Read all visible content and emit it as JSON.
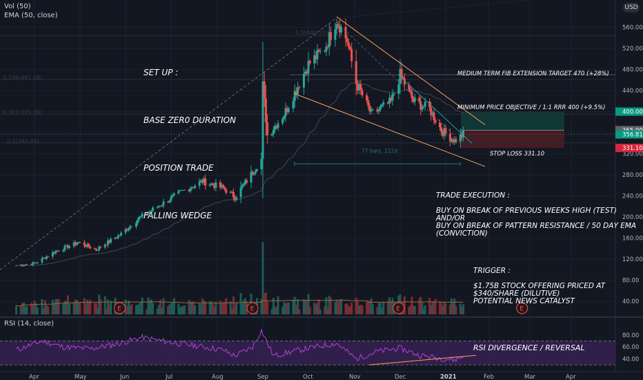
{
  "header": {
    "vol_label": "Vol (50)",
    "ema_label": "EMA (50, close)",
    "currency": "USD",
    "rsi_label": "RSI (14, close)"
  },
  "colors": {
    "background": "#131722",
    "up": "#26a69a",
    "down": "#ef5350",
    "vol_up": "#1e5b57",
    "vol_down": "#7a2c33",
    "ema": "#363a45",
    "vol_ma": "#a0663a",
    "wedge": "#f7a35c",
    "rsi_line": "#b142d9",
    "rsi_band": "#3b2358",
    "target_zone": "#0f3b39",
    "stop_zone": "#4a1d24",
    "trend_dashed": "#787b86",
    "cyan_line": "#17a6a3",
    "measure": "#1f7a6e"
  },
  "annotations": {
    "setup_lines": [
      "SET UP :",
      "BASE ZER0 DURATION",
      "POSITION TRADE",
      "FALLING WEDGE"
    ],
    "medium_target": "MEDIUM TERM FIB EXTENSION TARGET 470 (+28%)",
    "min_objective": "MINIMUM PRICE OBJECTIVE / 1:1 RRR 400 (+9.5%)",
    "stop_loss": "STOP LOSS 331.10",
    "execution": "TRADE EXECUTION :\n\nBUY ON BREAK OF PREVIOUS WEEKS HIGH (TEST)\nAND/OR\nBUY ON BREAK OF PATTERN RESISTANCE / 50 DAY EMA\n(CONVICTION)",
    "trigger": "TRIGGER :\n\n$1.75B STOCK OFFERING PRICED AT\n$340/SHARE (DILUTIVE)\nPOTENTIAL NEWS CATALYST",
    "rsi_note": "RSI DIVERGENCE / REVERSAL",
    "measure": "77 bars, 112d",
    "fib_labels": [
      "0.5(440.33)",
      "0.236(461.09)",
      "0.382(395.26)",
      "0.5(340.83)"
    ],
    "earnings_marker": "E"
  },
  "chart_data": [
    {
      "type": "candlestick",
      "title": "",
      "x_ticks": [
        "Apr",
        "May",
        "Jun",
        "Jul",
        "Aug",
        "Sep",
        "Oct",
        "Nov",
        "Dec",
        "2021",
        "Feb",
        "Mar",
        "Apr"
      ],
      "y_ticks": [
        40,
        80,
        120,
        160,
        200,
        240,
        280,
        320,
        360,
        400,
        440,
        480,
        520,
        560
      ],
      "ylim": [
        14,
        583
      ],
      "price_labels": [
        {
          "value": 400,
          "text": "400.00"
        },
        {
          "value": 365,
          "text": "365.00"
        },
        {
          "value": 356.81,
          "text": "356.81"
        },
        {
          "value": 331.1,
          "text": "331.10"
        }
      ],
      "key_levels": {
        "entry": 356.81,
        "stop": 331.1,
        "target_1": 400,
        "target_2": 470,
        "offering_price": 340
      },
      "path_points": [
        {
          "date": "Mar 20",
          "close": 108
        },
        {
          "date": "Apr 01",
          "close": 112
        },
        {
          "date": "Apr 15",
          "close": 135
        },
        {
          "date": "Apr 30",
          "close": 152
        },
        {
          "date": "May 12",
          "close": 138
        },
        {
          "date": "May 29",
          "close": 168
        },
        {
          "date": "Jun 10",
          "close": 198
        },
        {
          "date": "Jun 25",
          "close": 225
        },
        {
          "date": "Jul 08",
          "close": 248
        },
        {
          "date": "Jul 22",
          "close": 268
        },
        {
          "date": "Aug 05",
          "close": 255
        },
        {
          "date": "Aug 13",
          "close": 238
        },
        {
          "date": "Aug 20",
          "close": 265
        },
        {
          "date": "Aug 31",
          "close": 310
        },
        {
          "date": "Sep 01",
          "close": 450
        },
        {
          "date": "Sep 04",
          "close": 355
        },
        {
          "date": "Sep 15",
          "close": 395
        },
        {
          "date": "Oct 01",
          "close": 490
        },
        {
          "date": "Oct 12",
          "close": 520
        },
        {
          "date": "Oct 20",
          "close": 575
        },
        {
          "date": "Oct 27",
          "close": 535
        },
        {
          "date": "Nov 02",
          "close": 455
        },
        {
          "date": "Nov 12",
          "close": 395
        },
        {
          "date": "Nov 25",
          "close": 418
        },
        {
          "date": "Dec 01",
          "close": 470
        },
        {
          "date": "Dec 10",
          "close": 420
        },
        {
          "date": "Dec 21",
          "close": 405
        },
        {
          "date": "Dec 29",
          "close": 365
        },
        {
          "date": "Jan 07",
          "close": 345
        },
        {
          "date": "Jan 13",
          "close": 356.81
        }
      ],
      "earnings_dates": [
        "May 28",
        "Aug 25",
        "Nov 30",
        "Feb 22"
      ]
    },
    {
      "type": "line",
      "title": "RSI (14, close)",
      "ylim": [
        22,
        95
      ],
      "y_ticks": [
        40,
        60,
        80
      ],
      "bands": [
        30,
        70
      ],
      "path_points": [
        {
          "date": "Mar 20",
          "value": 55
        },
        {
          "date": "Apr 06",
          "value": 70
        },
        {
          "date": "Apr 20",
          "value": 60
        },
        {
          "date": "May 08",
          "value": 57
        },
        {
          "date": "May 26",
          "value": 65
        },
        {
          "date": "Jun 12",
          "value": 76
        },
        {
          "date": "Jun 30",
          "value": 68
        },
        {
          "date": "Jul 18",
          "value": 62
        },
        {
          "date": "Aug 05",
          "value": 55
        },
        {
          "date": "Aug 13",
          "value": 45
        },
        {
          "date": "Aug 25",
          "value": 60
        },
        {
          "date": "Aug 31",
          "value": 88
        },
        {
          "date": "Sep 08",
          "value": 45
        },
        {
          "date": "Sep 25",
          "value": 55
        },
        {
          "date": "Oct 10",
          "value": 62
        },
        {
          "date": "Oct 20",
          "value": 66
        },
        {
          "date": "Nov 02",
          "value": 40
        },
        {
          "date": "Nov 15",
          "value": 52
        },
        {
          "date": "Dec 01",
          "value": 58
        },
        {
          "date": "Dec 14",
          "value": 46
        },
        {
          "date": "Jan 07",
          "value": 38
        },
        {
          "date": "Jan 13",
          "value": 44
        }
      ]
    }
  ]
}
